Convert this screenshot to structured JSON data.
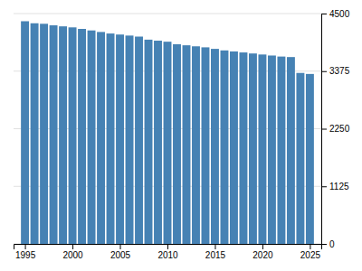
{
  "chart_data": {
    "type": "bar",
    "x": [
      1995,
      1996,
      1997,
      1998,
      1999,
      2000,
      2001,
      2002,
      2003,
      2004,
      2005,
      2006,
      2007,
      2008,
      2009,
      2010,
      2011,
      2012,
      2013,
      2014,
      2015,
      2016,
      2017,
      2018,
      2019,
      2020,
      2021,
      2022,
      2023,
      2024,
      2025
    ],
    "values": [
      4350,
      4310,
      4300,
      4270,
      4250,
      4230,
      4200,
      4170,
      4140,
      4110,
      4090,
      4070,
      4050,
      3990,
      3970,
      3950,
      3900,
      3880,
      3860,
      3840,
      3810,
      3780,
      3760,
      3740,
      3720,
      3700,
      3680,
      3660,
      3650,
      3340,
      3320
    ],
    "xlim": [
      1993.8,
      2026.2
    ],
    "xticks": [
      1995,
      2000,
      2005,
      2010,
      2015,
      2020,
      2025
    ],
    "ylim": [
      0,
      4500
    ],
    "yticks": [
      0,
      1125,
      2250,
      3375,
      4500
    ],
    "grid": true
  }
}
